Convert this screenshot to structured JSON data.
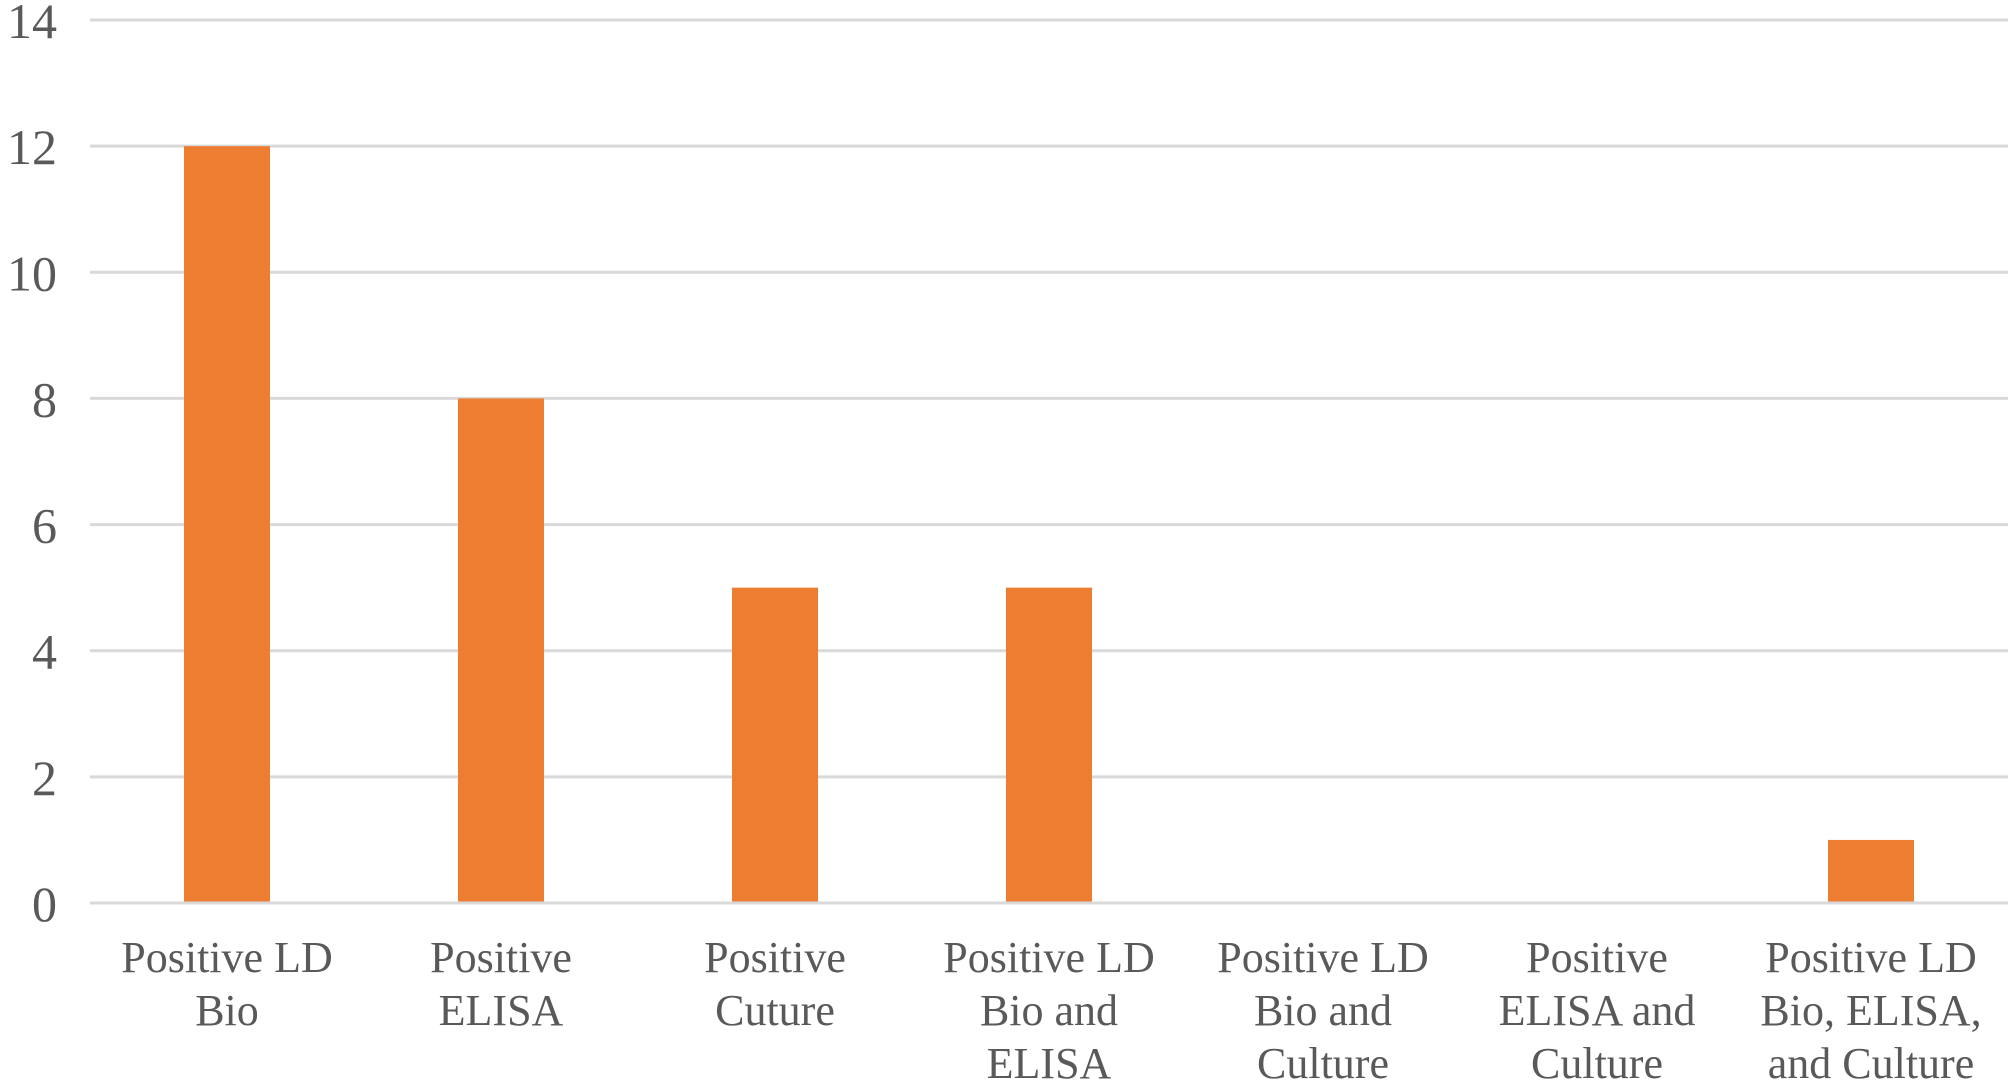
{
  "chart_data": {
    "type": "bar",
    "title": "",
    "xlabel": "",
    "ylabel": "",
    "ylim": [
      0,
      14
    ],
    "yticks": [
      0,
      2,
      4,
      6,
      8,
      10,
      12,
      14
    ],
    "grid": true,
    "legend": "none",
    "bar_color": "#ed7d31",
    "categories": [
      [
        "Positive LD",
        "Bio"
      ],
      [
        "Positive",
        "ELISA"
      ],
      [
        "Positive",
        "Cuture"
      ],
      [
        "Positive LD",
        "Bio and",
        "ELISA"
      ],
      [
        "Positive LD",
        "Bio and",
        "Culture"
      ],
      [
        "Positive",
        "ELISA and",
        "Culture"
      ],
      [
        "Positive LD",
        "Bio, ELISA,",
        "and Culture"
      ]
    ],
    "values": [
      12,
      8,
      5,
      5,
      0,
      0,
      1
    ]
  }
}
